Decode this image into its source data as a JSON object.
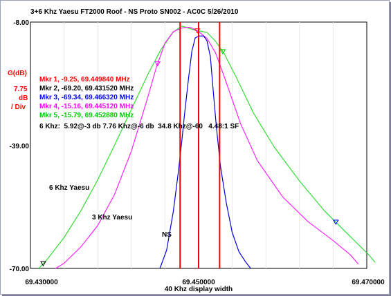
{
  "chart_data": {
    "type": "line",
    "title": "3+6 Khz Yaesu FT2000 Roof - NS Proto SN002 - AC0C 5/26/2010",
    "xlabel": "40 Khz display width",
    "ylabel_lines": [
      "G(dB)",
      "7.75",
      "dB",
      "/ Div"
    ],
    "ytick_labels": [
      "-8.00",
      "-39.00",
      "-70.00"
    ],
    "xtick_labels": [
      "69.430000",
      "69.450000",
      "69.470000"
    ],
    "xlim": [
      69.43,
      69.47
    ],
    "ylim": [
      -70.0,
      -8.0
    ],
    "grid": "x only (10 divisions), plot frame",
    "markers": [
      {
        "label": "Mkr 1, -9.25, 69.449840 MHz",
        "color": "#ff0000",
        "x": 69.44984
      },
      {
        "label": "Mkr 2, -69.20, 69.431520 MHz",
        "color": "#000000",
        "x": 69.43152
      },
      {
        "label": "Mkr 3, -69.34, 69.466320 MHz",
        "color": "#0000ff",
        "x": 69.46632
      },
      {
        "label": "Mkr 4, -15.16, 69.445120 MHz",
        "color": "#ff00ff",
        "x": 69.44512
      },
      {
        "label": "Mkr 5, -15.79, 69.452880 MHz",
        "color": "#00cc00",
        "x": 69.45288
      }
    ],
    "summary": "6 Khz:  5.92@-3 db 7.76 Khz@-6 db  34.8 Khz@-60   4.48:1 SF",
    "annotations": [
      "6 Khz Yaesu",
      "3 Khz Yaesu",
      "NS"
    ],
    "vertical_lines_x": [
      69.4478,
      69.45,
      69.4525
    ],
    "series": [
      {
        "color": "#33dd33",
        "points": [
          [
            69.431,
            -70
          ],
          [
            69.432,
            -67.7
          ],
          [
            69.434,
            -62.2
          ],
          [
            69.436,
            -55.5
          ],
          [
            69.438,
            -47.7
          ],
          [
            69.44,
            -39.0
          ],
          [
            69.442,
            -30.0
          ],
          [
            69.444,
            -21.0
          ],
          [
            69.4455,
            -15.0
          ],
          [
            69.447,
            -10.5
          ],
          [
            69.448,
            -9.0
          ],
          [
            69.4495,
            -10.0
          ],
          [
            69.451,
            -10.6
          ],
          [
            69.452,
            -12.8
          ],
          [
            69.453,
            -15.8
          ],
          [
            69.4545,
            -22.0
          ],
          [
            69.4565,
            -30.8
          ],
          [
            69.459,
            -39.5
          ],
          [
            69.462,
            -48.0
          ],
          [
            69.465,
            -55.6
          ],
          [
            69.468,
            -61.9
          ],
          [
            69.4702,
            -66.5
          ],
          [
            69.471,
            -68.5
          ]
        ]
      },
      {
        "color": "#ff22ff",
        "points": [
          [
            69.433,
            -70
          ],
          [
            69.434,
            -68.7
          ],
          [
            69.436,
            -64.6
          ],
          [
            69.438,
            -59.2
          ],
          [
            69.44,
            -51.4
          ],
          [
            69.442,
            -40.5
          ],
          [
            69.443,
            -33.6
          ],
          [
            69.444,
            -26.6
          ],
          [
            69.445,
            -19.2
          ],
          [
            69.446,
            -13.3
          ],
          [
            69.447,
            -10.4
          ],
          [
            69.448,
            -9.5
          ],
          [
            69.449,
            -9.3
          ],
          [
            69.45,
            -10.4
          ],
          [
            69.451,
            -12.1
          ],
          [
            69.452,
            -15.7
          ],
          [
            69.453,
            -21.5
          ],
          [
            69.455,
            -33.6
          ],
          [
            69.457,
            -42.9
          ],
          [
            69.46,
            -52.0
          ],
          [
            69.463,
            -58.2
          ],
          [
            69.466,
            -63.0
          ],
          [
            69.468,
            -66.5
          ],
          [
            69.469,
            -68.9
          ]
        ]
      },
      {
        "color": "#0000dd",
        "points": [
          [
            69.4454,
            -70
          ],
          [
            69.4462,
            -65.4
          ],
          [
            69.447,
            -55.6
          ],
          [
            69.4476,
            -45.6
          ],
          [
            69.448,
            -38.0
          ],
          [
            69.4483,
            -31.8
          ],
          [
            69.4488,
            -22.2
          ],
          [
            69.4492,
            -15.3
          ],
          [
            69.4496,
            -12.0
          ],
          [
            69.45,
            -11.5
          ],
          [
            69.4506,
            -11.5
          ],
          [
            69.451,
            -12.7
          ],
          [
            69.4514,
            -16.7
          ],
          [
            69.4517,
            -24.5
          ],
          [
            69.4521,
            -34.1
          ],
          [
            69.4526,
            -44.3
          ],
          [
            69.4533,
            -53.6
          ],
          [
            69.454,
            -61.0
          ],
          [
            69.4548,
            -65.8
          ],
          [
            69.4556,
            -68.4
          ],
          [
            69.4562,
            -70
          ]
        ]
      }
    ]
  }
}
